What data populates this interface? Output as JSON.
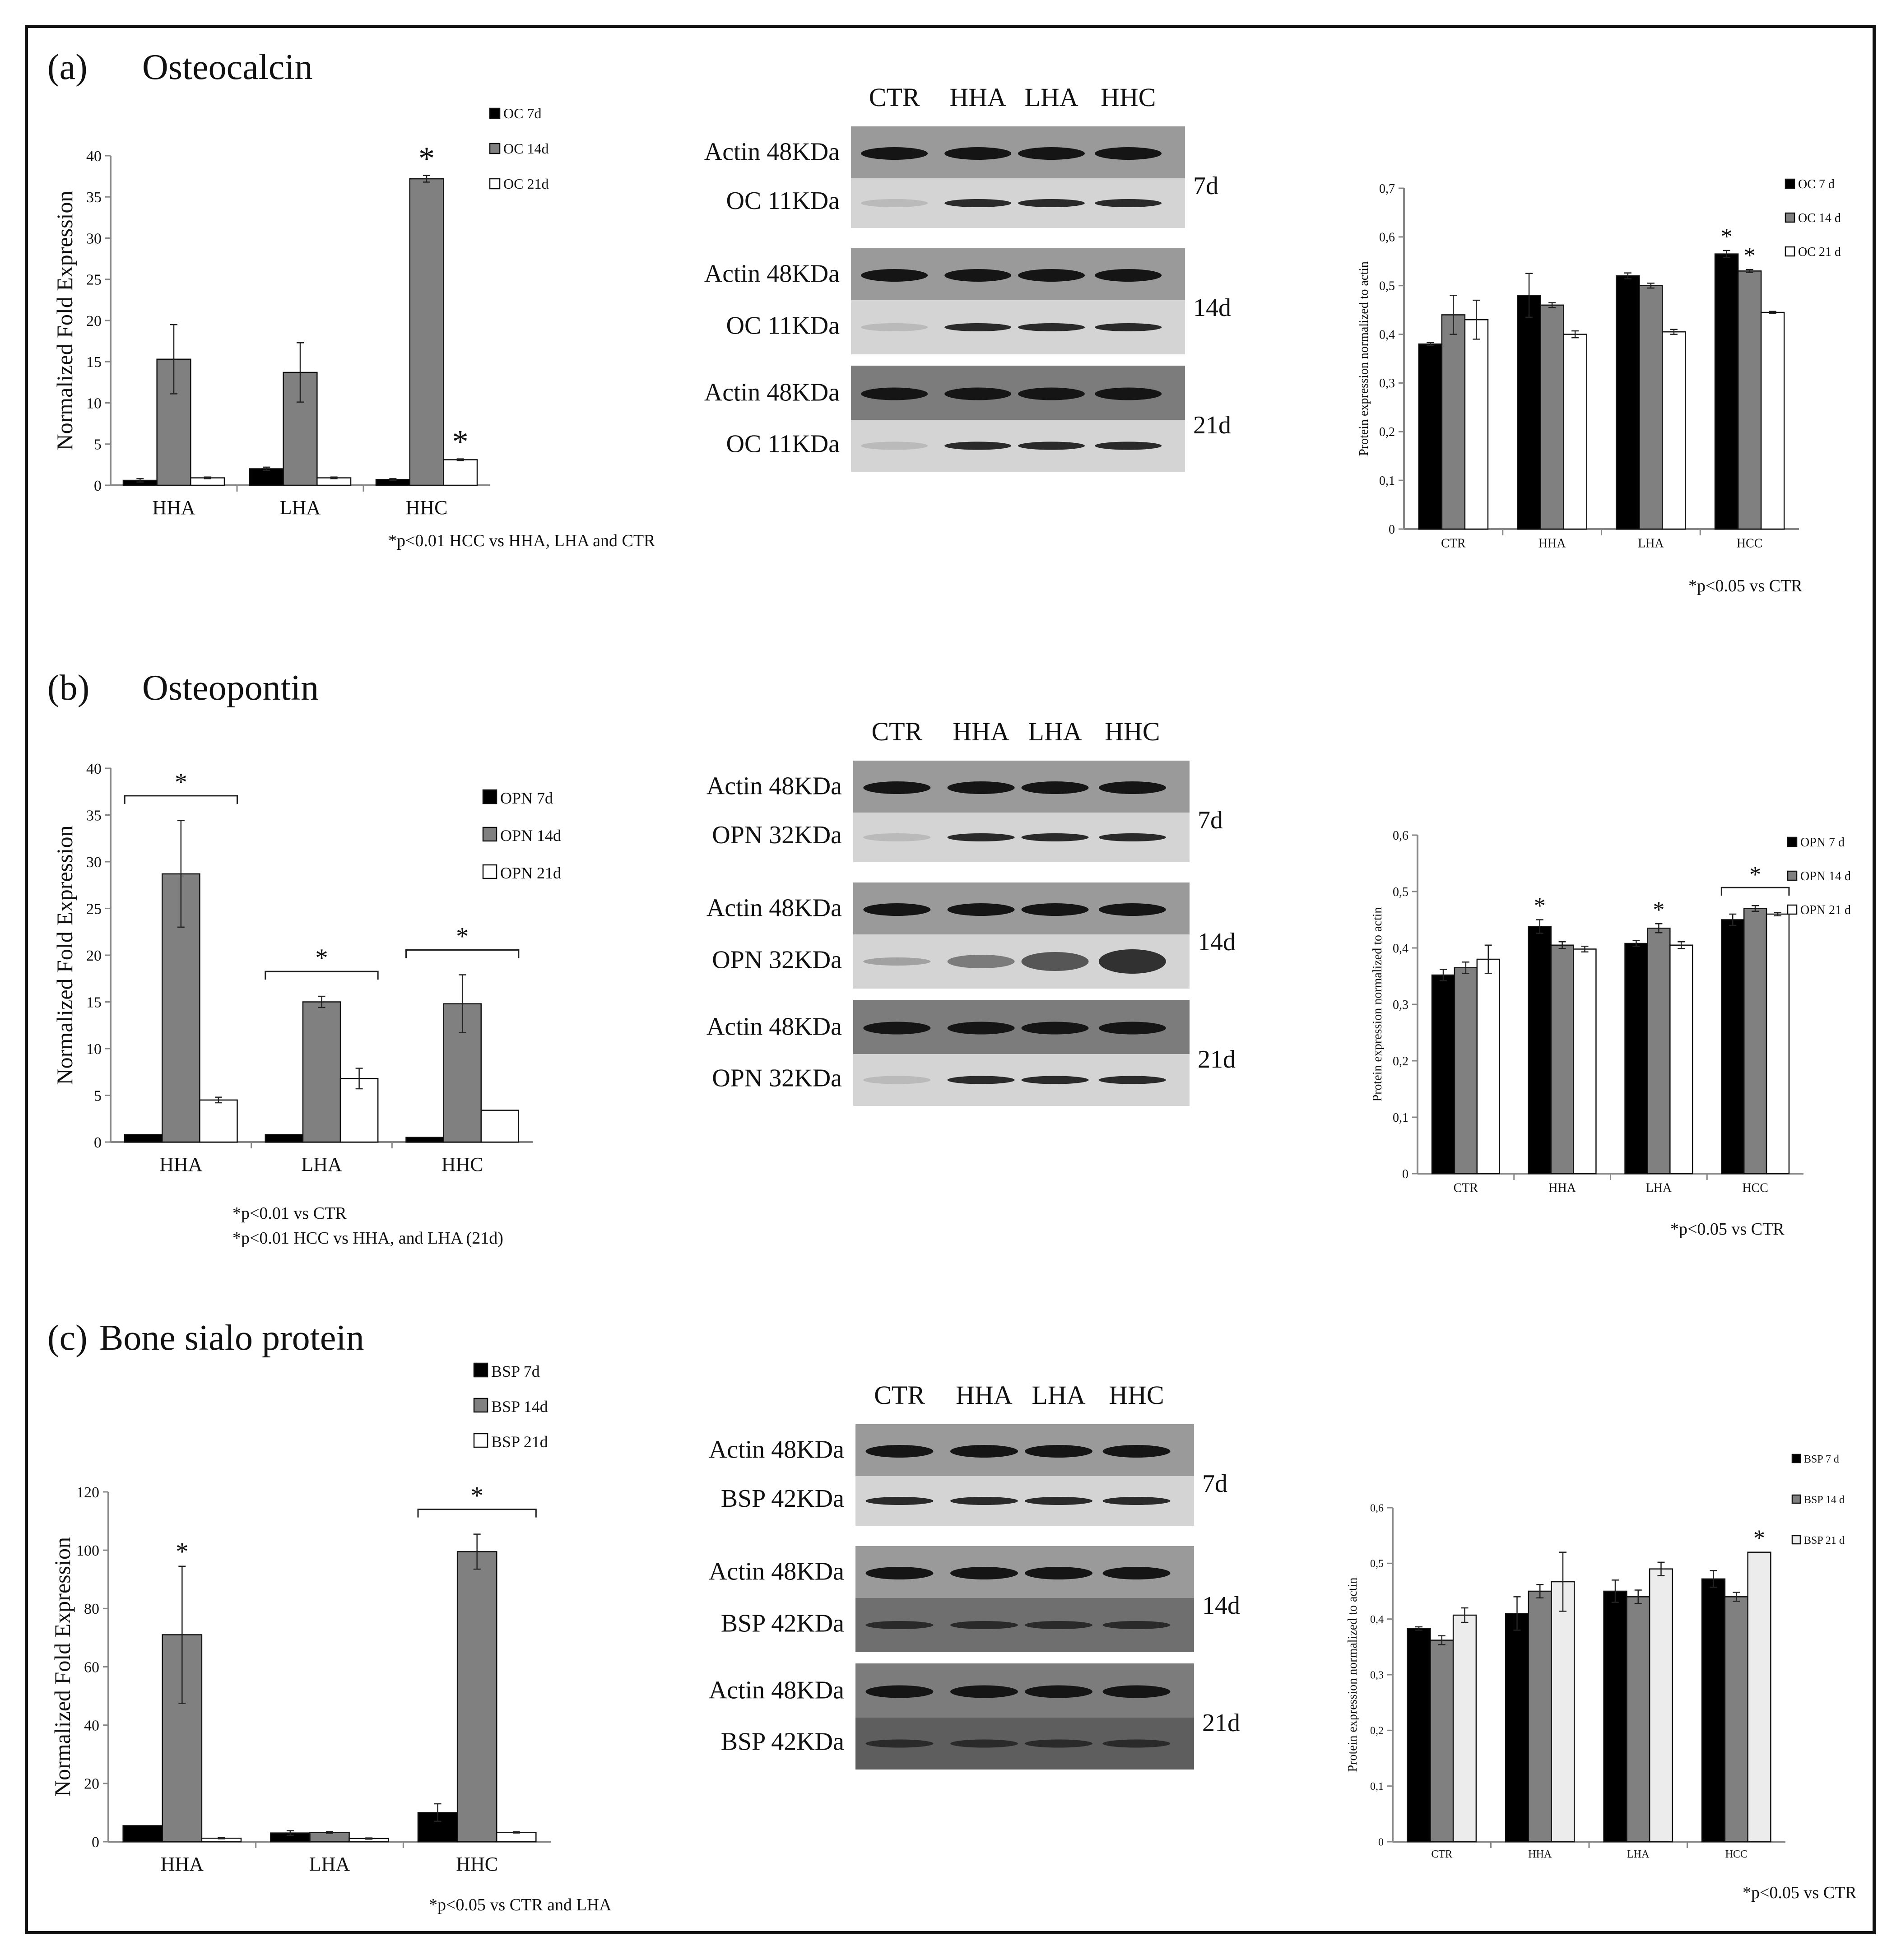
{
  "panels": [
    {
      "id": "a",
      "letter": "(a)",
      "name": "Osteocalcin",
      "qpcr": {
        "ylabel": "Normalized Fold Expression",
        "note_lines": [
          "*p<0.01 HCC vs HHA, LHA and CTR"
        ]
      },
      "blot": {
        "lanes": [
          "CTR",
          "HHA",
          "LHA",
          "HHC"
        ],
        "rows": [
          {
            "label": "Actin 48KDa"
          },
          {
            "label": "OC 11KDa"
          },
          {
            "label": "Actin 48KDa"
          },
          {
            "label": "OC 11KDa"
          },
          {
            "label": "Actin 48KDa"
          },
          {
            "label": "OC 11KDa"
          }
        ],
        "days": [
          "7d",
          "14d",
          "21d"
        ]
      },
      "prot": {
        "ylabel": "Protein expression normalized to actin",
        "note": "*p<0.05 vs CTR"
      }
    },
    {
      "id": "b",
      "letter": "(b)",
      "name": "Osteopontin",
      "qpcr": {
        "ylabel": "Normalized Fold Expression",
        "note_lines": [
          "*p<0.01 vs CTR",
          "*p<0.01 HCC vs HHA, and LHA (21d)"
        ]
      },
      "blot": {
        "lanes": [
          "CTR",
          "HHA",
          "LHA",
          "HHC"
        ],
        "rows": [
          {
            "label": "Actin 48KDa"
          },
          {
            "label": "OPN 32KDa"
          },
          {
            "label": "Actin 48KDa"
          },
          {
            "label": "OPN 32KDa"
          },
          {
            "label": "Actin 48KDa"
          },
          {
            "label": "OPN 32KDa"
          }
        ],
        "days": [
          "7d",
          "14d",
          "21d"
        ]
      },
      "prot": {
        "ylabel": "Protein expression normalized to actin",
        "note": "*p<0.05 vs CTR"
      }
    },
    {
      "id": "c",
      "letter": "(c)",
      "name": "Bone sialo protein",
      "qpcr": {
        "ylabel": "Normalized Fold Expression",
        "note_lines": [
          "*p<0.05 vs CTR and LHA"
        ]
      },
      "blot": {
        "lanes": [
          "CTR",
          "HHA",
          "LHA",
          "HHC"
        ],
        "rows": [
          {
            "label": "Actin 48KDa"
          },
          {
            "label": "BSP 42KDa"
          },
          {
            "label": "Actin 48KDa"
          },
          {
            "label": "BSP 42KDa"
          },
          {
            "label": "Actin 48KDa"
          },
          {
            "label": "BSP 42KDa"
          }
        ],
        "days": [
          "7d",
          "14d",
          "21d"
        ]
      },
      "prot": {
        "ylabel": "Protein expression normalized to actin",
        "note": "*p<0.05 vs CTR"
      }
    }
  ],
  "colors": {
    "d7": "#000000",
    "d14": "#808080",
    "d21": "#ffffff",
    "d21_bsp_prot": "#ececec",
    "axis": "#888888"
  },
  "chart_data": [
    {
      "id": "a-qpcr",
      "type": "bar",
      "title": "Osteocalcin",
      "xlabel": "",
      "ylabel": "Normalized Fold Expression",
      "categories": [
        "HHA",
        "LHA",
        "HHC"
      ],
      "ylim": [
        0,
        40
      ],
      "yticks": [
        "0",
        "5",
        "10",
        "15",
        "20",
        "25",
        "30",
        "35",
        "40"
      ],
      "legend": "top-right",
      "series": [
        {
          "name": "OC 7d",
          "values": [
            0.6,
            2.0,
            0.7
          ],
          "errors": [
            0.2,
            0.2,
            0.1
          ]
        },
        {
          "name": "OC 14d",
          "values": [
            15.3,
            13.7,
            37.2
          ],
          "errors": [
            4.2,
            3.6,
            0.4
          ]
        },
        {
          "name": "OC 21d",
          "values": [
            0.9,
            0.9,
            3.1
          ],
          "errors": [
            0.1,
            0.1,
            0.1
          ]
        }
      ],
      "annotations": [
        {
          "text": "*",
          "category": "HHC",
          "series": "OC 14d"
        },
        {
          "text": "*",
          "category": "HHC",
          "series": "OC 21d"
        }
      ]
    },
    {
      "id": "a-prot",
      "type": "bar",
      "title": "",
      "xlabel": "",
      "ylabel": "Protein expression normalized to actin",
      "categories": [
        "CTR",
        "HHA",
        "LHA",
        "HCC"
      ],
      "ylim": [
        0,
        0.7
      ],
      "yticks": [
        "0",
        "0,1",
        "0,2",
        "0,3",
        "0,4",
        "0,5",
        "0,6",
        "0,7"
      ],
      "legend": "top-right",
      "series": [
        {
          "name": "OC 7 d",
          "values": [
            0.38,
            0.48,
            0.52,
            0.565
          ],
          "errors": [
            0.003,
            0.045,
            0.006,
            0.007
          ]
        },
        {
          "name": "OC 14 d",
          "values": [
            0.44,
            0.46,
            0.5,
            0.53
          ],
          "errors": [
            0.04,
            0.005,
            0.005,
            0.003
          ]
        },
        {
          "name": "OC 21 d",
          "values": [
            0.43,
            0.4,
            0.405,
            0.445
          ],
          "errors": [
            0.04,
            0.007,
            0.005,
            0.002
          ]
        }
      ],
      "annotations": [
        {
          "text": "*",
          "category": "HCC",
          "series": "OC 7 d"
        },
        {
          "text": "*",
          "category": "HCC",
          "series": "OC 14 d"
        }
      ]
    },
    {
      "id": "b-qpcr",
      "type": "bar",
      "title": "Osteopontin",
      "xlabel": "",
      "ylabel": "Normalized Fold Expression",
      "categories": [
        "HHA",
        "LHA",
        "HHC"
      ],
      "ylim": [
        0,
        40
      ],
      "yticks": [
        "0",
        "5",
        "10",
        "15",
        "20",
        "25",
        "30",
        "35",
        "40"
      ],
      "legend": "top-right",
      "series": [
        {
          "name": "OPN 7d",
          "values": [
            0.8,
            0.8,
            0.5
          ],
          "errors": [
            0,
            0,
            0
          ]
        },
        {
          "name": "OPN 14d",
          "values": [
            28.7,
            15.0,
            14.8
          ],
          "errors": [
            5.7,
            0.6,
            3.1
          ]
        },
        {
          "name": "OPN 21d",
          "values": [
            4.5,
            6.8,
            3.4
          ],
          "errors": [
            0.3,
            1.1,
            0
          ]
        }
      ],
      "annotations": [
        {
          "text": "*",
          "category": "HHA",
          "bracket": true
        },
        {
          "text": "*",
          "category": "LHA",
          "bracket": true
        },
        {
          "text": "*",
          "category": "HHC",
          "bracket": true
        }
      ]
    },
    {
      "id": "b-prot",
      "type": "bar",
      "title": "",
      "xlabel": "",
      "ylabel": "Protein expression normalized to actin",
      "categories": [
        "CTR",
        "HHA",
        "LHA",
        "HCC"
      ],
      "ylim": [
        0,
        0.6
      ],
      "yticks": [
        "0",
        "0,1",
        "0,2",
        "0,3",
        "0,4",
        "0,5",
        "0,6"
      ],
      "legend": "top-right",
      "series": [
        {
          "name": "OPN 7 d",
          "values": [
            0.352,
            0.438,
            0.408,
            0.45
          ],
          "errors": [
            0.01,
            0.012,
            0.005,
            0.01
          ]
        },
        {
          "name": "OPN 14 d",
          "values": [
            0.365,
            0.405,
            0.435,
            0.47
          ],
          "errors": [
            0.01,
            0.006,
            0.008,
            0.005
          ]
        },
        {
          "name": "OPN 21 d",
          "values": [
            0.38,
            0.398,
            0.405,
            0.46
          ],
          "errors": [
            0.025,
            0.005,
            0.006,
            0.003
          ]
        }
      ],
      "annotations": [
        {
          "text": "*",
          "category": "HHA",
          "series": "OPN 7 d"
        },
        {
          "text": "*",
          "category": "LHA",
          "series": "OPN 14 d"
        },
        {
          "text": "*",
          "category": "HCC",
          "bracket": true
        }
      ]
    },
    {
      "id": "c-qpcr",
      "type": "bar",
      "title": "Bone sialo protein",
      "xlabel": "",
      "ylabel": "Normalized Fold Expression",
      "categories": [
        "HHA",
        "LHA",
        "HHC"
      ],
      "ylim": [
        0,
        120
      ],
      "yticks": [
        "0",
        "20",
        "40",
        "60",
        "80",
        "100",
        "120"
      ],
      "legend": "top-right",
      "series": [
        {
          "name": "BSP 7d",
          "values": [
            5.5,
            3.0,
            10.0
          ],
          "errors": [
            0,
            0.8,
            3.0
          ]
        },
        {
          "name": "BSP 14d",
          "values": [
            71.0,
            3.2,
            99.5
          ],
          "errors": [
            23.5,
            0.3,
            6.0
          ]
        },
        {
          "name": "BSP 21d",
          "values": [
            1.2,
            1.1,
            3.2
          ],
          "errors": [
            0.2,
            0.2,
            0.2
          ]
        }
      ],
      "annotations": [
        {
          "text": "*",
          "category": "HHA",
          "series": "BSP 14d"
        },
        {
          "text": "*",
          "category": "HHC",
          "bracket": true
        }
      ]
    },
    {
      "id": "c-prot",
      "type": "bar",
      "title": "",
      "xlabel": "",
      "ylabel": "Protein expression normalized to actin",
      "categories": [
        "CTR",
        "HHA",
        "LHA",
        "HCC"
      ],
      "ylim": [
        0,
        0.6
      ],
      "yticks": [
        "0",
        "0,1",
        "0,2",
        "0,3",
        "0,4",
        "0,5",
        "0,6"
      ],
      "legend": "top-right",
      "series": [
        {
          "name": "BSP 7 d",
          "values": [
            0.383,
            0.41,
            0.45,
            0.472
          ],
          "errors": [
            0.003,
            0.03,
            0.02,
            0.015
          ]
        },
        {
          "name": "BSP 14 d",
          "values": [
            0.362,
            0.45,
            0.44,
            0.44
          ],
          "errors": [
            0.008,
            0.012,
            0.012,
            0.008
          ]
        },
        {
          "name": "BSP 21 d",
          "values": [
            0.407,
            0.467,
            0.49,
            0.52
          ],
          "errors": [
            0.013,
            0.053,
            0.012,
            0.0
          ]
        }
      ],
      "annotations": [
        {
          "text": "*",
          "category": "HCC",
          "series": "BSP 21 d"
        }
      ]
    }
  ]
}
